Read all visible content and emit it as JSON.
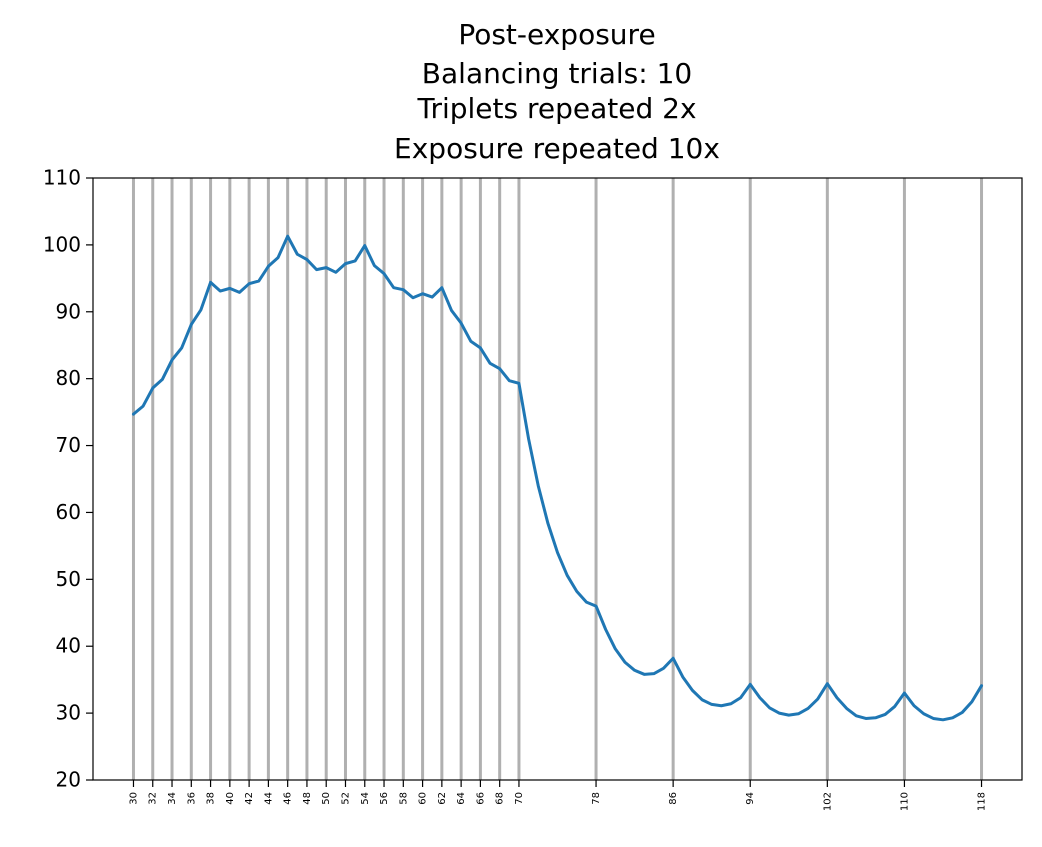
{
  "chart_data": {
    "type": "line",
    "title_lines": [
      "Post-exposure",
      "Balancing trials: 10",
      "Triplets repeated 2x",
      "Exposure repeated 10x"
    ],
    "xlabel": "",
    "ylabel": "",
    "ylim": [
      20,
      110
    ],
    "xlim": [
      25.8,
      122.2
    ],
    "yticks": [
      20,
      30,
      40,
      50,
      60,
      70,
      80,
      90,
      100,
      110
    ],
    "xticks": [
      30,
      32,
      34,
      36,
      38,
      40,
      42,
      44,
      46,
      48,
      50,
      52,
      54,
      56,
      58,
      60,
      62,
      64,
      66,
      68,
      70,
      78,
      86,
      94,
      102,
      110,
      118
    ],
    "vlines": [
      30,
      32,
      34,
      36,
      38,
      40,
      42,
      44,
      46,
      48,
      50,
      52,
      54,
      56,
      58,
      60,
      62,
      64,
      66,
      68,
      70,
      78,
      86,
      94,
      102,
      110,
      118
    ],
    "grid": "vertical lines at tick positions",
    "colors": {
      "line": "#1f77b4",
      "vline": "#b0b0b0"
    },
    "series": [
      {
        "x": [
          30,
          31,
          32,
          33,
          34,
          35,
          36,
          37,
          38,
          39,
          40,
          41,
          42,
          43,
          44,
          45,
          46,
          47,
          48,
          49,
          50,
          51,
          52,
          53,
          54,
          55,
          56,
          57,
          58,
          59,
          60,
          61,
          62,
          63,
          64,
          65,
          66,
          67,
          68,
          69,
          70,
          71,
          72,
          73,
          74,
          75,
          76,
          77,
          78,
          79,
          80,
          81,
          82,
          83,
          84,
          85,
          86,
          87,
          88,
          89,
          90,
          91,
          92,
          93,
          94,
          95,
          96,
          97,
          98,
          99,
          100,
          101,
          102,
          103,
          104,
          105,
          106,
          107,
          108,
          109,
          110,
          111,
          112,
          113,
          114,
          115,
          116,
          117,
          118
        ],
        "y": [
          74.7,
          75.9,
          78.6,
          79.9,
          82.8,
          84.6,
          88.1,
          90.3,
          94.4,
          93.1,
          93.5,
          92.9,
          94.2,
          94.6,
          96.8,
          98.1,
          101.3,
          98.6,
          97.8,
          96.3,
          96.6,
          95.9,
          97.2,
          97.6,
          99.9,
          96.9,
          95.7,
          93.6,
          93.3,
          92.1,
          92.7,
          92.2,
          93.6,
          90.2,
          88.3,
          85.6,
          84.6,
          82.3,
          81.5,
          79.7,
          79.3,
          71.0,
          64.0,
          58.4,
          54.0,
          50.6,
          48.2,
          46.6,
          46.0,
          42.5,
          39.6,
          37.6,
          36.4,
          35.8,
          35.9,
          36.7,
          38.2,
          35.4,
          33.4,
          32.0,
          31.3,
          31.1,
          31.4,
          32.3,
          34.3,
          32.3,
          30.8,
          30.0,
          29.7,
          29.9,
          30.7,
          32.1,
          34.4,
          32.3,
          30.7,
          29.6,
          29.2,
          29.3,
          29.8,
          31.0,
          33.0,
          31.1,
          29.9,
          29.2,
          29.0,
          29.3,
          30.1,
          31.7,
          34.1
        ]
      }
    ]
  }
}
